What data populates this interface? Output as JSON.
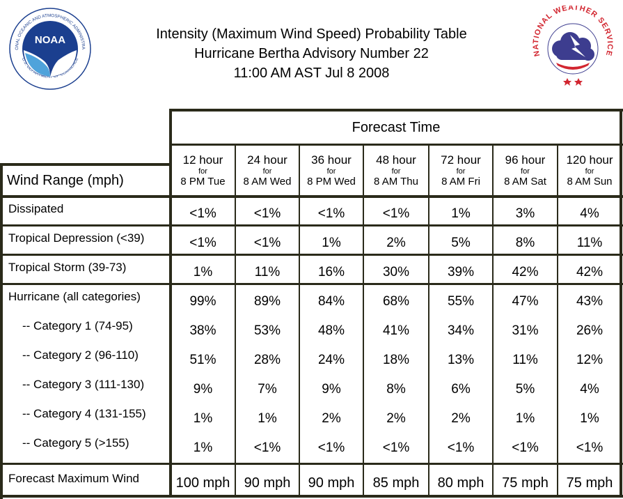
{
  "header": {
    "title_line1": "Intensity (Maximum Wind Speed) Probability Table",
    "title_line2": "Hurricane Bertha Advisory Number 22",
    "title_line3": "11:00 AM AST Jul 8 2008"
  },
  "logos": {
    "noaa_text": "NOAA",
    "noaa_ring_text": "NATIONAL OCEANIC AND ATMOSPHERIC ADMINISTRATION",
    "noaa_bottom_text": "U.S. DEPARTMENT OF COMMERCE",
    "nws_ring_text": "NATIONAL WEATHER SERVICE"
  },
  "table": {
    "forecast_time_label": "Forecast Time",
    "wind_range_label": "Wind Range (mph)",
    "columns": [
      {
        "hours": "12 hour",
        "for": "for",
        "when": "8 PM Tue"
      },
      {
        "hours": "24 hour",
        "for": "for",
        "when": "8 AM Wed"
      },
      {
        "hours": "36 hour",
        "for": "for",
        "when": "8 PM Wed"
      },
      {
        "hours": "48 hour",
        "for": "for",
        "when": "8 AM Thu"
      },
      {
        "hours": "72 hour",
        "for": "for",
        "when": "8 AM Fri"
      },
      {
        "hours": "96 hour",
        "for": "for",
        "when": "8 AM Sat"
      },
      {
        "hours": "120 hour",
        "for": "for",
        "when": "8 AM Sun"
      }
    ],
    "rows": [
      {
        "label": "Dissipated",
        "values": [
          "<1%",
          "<1%",
          "<1%",
          "<1%",
          "1%",
          "3%",
          "4%"
        ]
      },
      {
        "label": "Tropical Depression (<39)",
        "values": [
          "<1%",
          "<1%",
          "1%",
          "2%",
          "5%",
          "8%",
          "11%"
        ]
      },
      {
        "label": "Tropical Storm (39-73)",
        "values": [
          "1%",
          "11%",
          "16%",
          "30%",
          "39%",
          "42%",
          "42%"
        ]
      },
      {
        "label": "Hurricane (all categories)",
        "values": [
          "99%",
          "89%",
          "84%",
          "68%",
          "55%",
          "47%",
          "43%"
        ]
      },
      {
        "label": "-- Category 1 (74-95)",
        "values": [
          "38%",
          "53%",
          "48%",
          "41%",
          "34%",
          "31%",
          "26%"
        ]
      },
      {
        "label": "-- Category 2 (96-110)",
        "values": [
          "51%",
          "28%",
          "24%",
          "18%",
          "13%",
          "11%",
          "12%"
        ]
      },
      {
        "label": "-- Category 3 (111-130)",
        "values": [
          "9%",
          "7%",
          "9%",
          "8%",
          "6%",
          "5%",
          "4%"
        ]
      },
      {
        "label": "-- Category 4 (131-155)",
        "values": [
          "1%",
          "1%",
          "2%",
          "2%",
          "2%",
          "1%",
          "1%"
        ]
      },
      {
        "label": "-- Category 5 (>155)",
        "values": [
          "1%",
          "<1%",
          "<1%",
          "<1%",
          "<1%",
          "<1%",
          "<1%"
        ]
      }
    ],
    "max_wind": {
      "label": "Forecast Maximum Wind",
      "values": [
        "100 mph",
        "90 mph",
        "90 mph",
        "85 mph",
        "80 mph",
        "75 mph",
        "75 mph"
      ]
    }
  },
  "colors": {
    "grid": "#2a2a1a",
    "noaa_blue": "#1b3f8f",
    "nws_red": "#d22630",
    "nws_cloud": "#3d3d8f"
  }
}
